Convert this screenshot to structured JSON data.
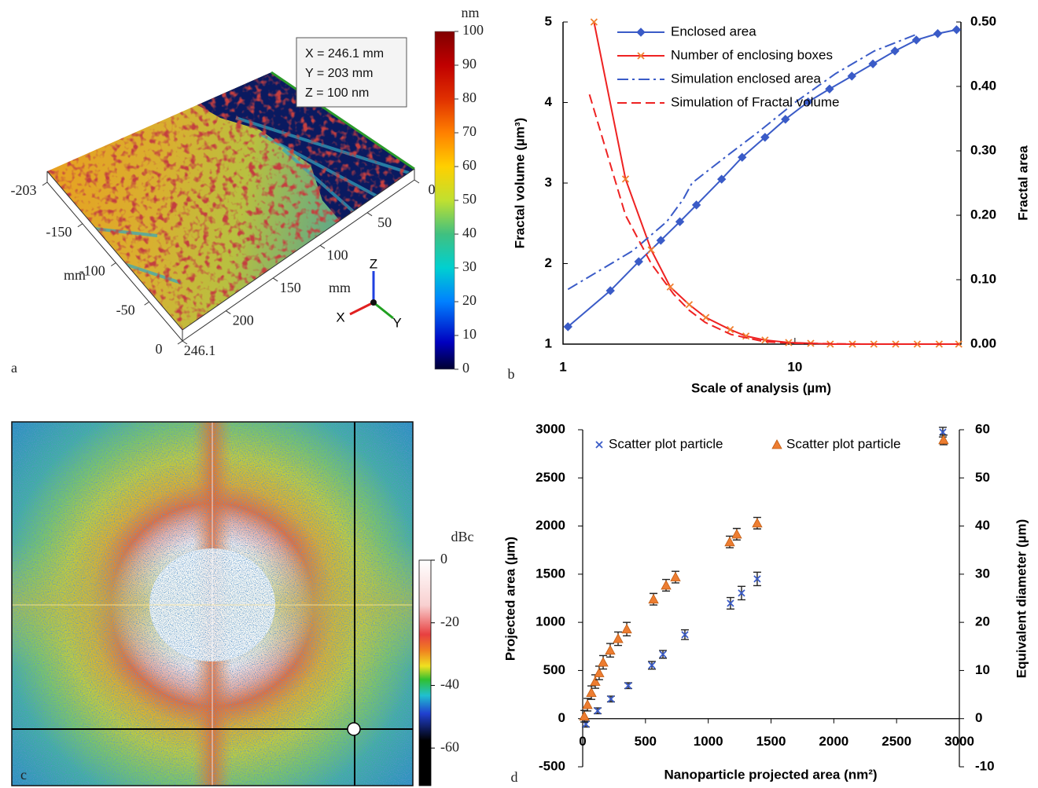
{
  "chart_data": [
    {
      "type": "surface",
      "panel_label": "a",
      "info": [
        "X = 246.1 mm",
        "Y = 203 mm",
        "Z = 100 nm"
      ],
      "color_unit": "nm",
      "clim": [
        0,
        100
      ],
      "cticks": [
        0,
        10,
        20,
        30,
        40,
        50,
        60,
        70,
        80,
        90,
        100
      ],
      "xlabel": "mm",
      "xlim": [
        0,
        246.1
      ],
      "xticks": [
        0,
        50,
        100,
        150,
        200,
        246.1
      ],
      "ylabel": "mm",
      "ylim": [
        -203,
        0
      ],
      "yticks": [
        -203,
        -150,
        -100,
        -50,
        0
      ],
      "triad": [
        "X",
        "Y",
        "Z"
      ]
    },
    {
      "type": "line",
      "panel_label": "b",
      "xlabel": "Scale of analysis (µm)",
      "ylabel": "Fractal volume (µm³)",
      "y2label": "Fractal area",
      "xscale": "log",
      "xlim": [
        1,
        52
      ],
      "xticks": [
        1,
        10
      ],
      "ylim": [
        1,
        5
      ],
      "yticks": [
        1,
        2,
        3,
        4,
        5
      ],
      "y2lim": [
        0,
        0.5
      ],
      "y2ticks": [
        {
          "value": 0,
          "label": "0.00"
        },
        {
          "value": 0.1,
          "label": "0.10"
        },
        {
          "value": 0.2,
          "label": "0.20"
        },
        {
          "value": 0.3,
          "label": "0.30"
        },
        {
          "value": 0.4,
          "label": "0.40"
        },
        {
          "value": 0.5,
          "label": "0.50"
        }
      ],
      "series": [
        {
          "name": "Enclosed area",
          "color": "#3a5bc7",
          "axis": "y2",
          "marker": "diamond",
          "dash": "solid",
          "x": [
            1.05,
            1.6,
            2.12,
            2.64,
            3.19,
            3.76,
            4.83,
            5.92,
            7.43,
            9.1,
            11.4,
            14.1,
            17.6,
            21.7,
            27,
            33.4,
            41.3,
            49.8
          ],
          "values": [
            0.027,
            0.083,
            0.128,
            0.161,
            0.19,
            0.216,
            0.256,
            0.29,
            0.321,
            0.349,
            0.376,
            0.396,
            0.416,
            0.435,
            0.455,
            0.472,
            0.482,
            0.488
          ]
        },
        {
          "name": "Number of enclosing boxes",
          "color": "#ee2222",
          "marker": "x",
          "dash": "solid",
          "x": [
            1.36,
            1.86,
            2.4,
            2.9,
            3.5,
            4.13,
            5.26,
            6.15,
            7.43,
            9.4,
            11.7,
            14.2,
            17.7,
            21.9,
            27.2,
            33.7,
            41.9,
            50.9
          ],
          "values": [
            5,
            3.05,
            2.17,
            1.71,
            1.49,
            1.33,
            1.18,
            1.1,
            1.05,
            1.02,
            1.01,
            1,
            1,
            1,
            1,
            1,
            1,
            1
          ]
        },
        {
          "name": "Simulation enclosed area",
          "color": "#3a5bc7",
          "axis": "y2",
          "dash": "dashdot",
          "x": [
            1.05,
            2,
            2.8,
            3.3,
            3.6,
            5,
            7,
            10,
            15,
            22,
            33
          ],
          "values": [
            0.085,
            0.145,
            0.19,
            0.225,
            0.25,
            0.29,
            0.33,
            0.375,
            0.42,
            0.455,
            0.48
          ]
        },
        {
          "name": "Simulation of Fractal volume",
          "color": "#ee2222",
          "dash": "dash",
          "x": [
            1.3,
            1.5,
            1.86,
            2.4,
            3,
            3.5,
            4.1,
            5.3,
            7.4,
            10,
            20,
            51
          ],
          "values": [
            4.1,
            3.5,
            2.6,
            2,
            1.62,
            1.42,
            1.27,
            1.12,
            1.03,
            1.01,
            1,
            1
          ]
        }
      ]
    },
    {
      "type": "heatmap",
      "panel_label": "c",
      "color_unit": "dBc",
      "clim": [
        -72,
        0
      ],
      "cticks": [
        0,
        -20,
        -40,
        -60
      ]
    },
    {
      "type": "scatter",
      "panel_label": "d",
      "xlabel": "Nanoparticle projected area (nm²)",
      "ylabel": "Projected area (µm)",
      "y2label": "Equivalent diameter (µm)",
      "xlim": [
        0,
        3000
      ],
      "xticks": [
        0,
        500,
        1000,
        1500,
        2000,
        2500,
        3000
      ],
      "ylim": [
        -500,
        3000
      ],
      "yticks": [
        -500,
        0,
        500,
        1000,
        1500,
        2000,
        2500,
        3000
      ],
      "y2lim": [
        -10,
        60
      ],
      "y2ticks": [
        -10,
        0,
        10,
        20,
        30,
        40,
        50,
        60
      ],
      "series": [
        {
          "name": "Scatter plot particle",
          "color": "#3a5bc7",
          "marker": "x",
          "x": [
            25,
            119,
            225,
            363,
            551,
            639,
            814,
            1177,
            1265,
            1390,
            2868
          ],
          "values": [
            -57,
            81,
            204,
            342,
            554,
            668,
            872,
            1198,
            1304,
            1451,
            2975
          ],
          "errors": [
            30,
            30,
            30,
            30,
            40,
            40,
            50,
            60,
            70,
            70,
            50
          ]
        },
        {
          "name": "Scatter plot particle",
          "color": "#ed7d31",
          "axis": "y2",
          "marker": "triangle",
          "x": [
            13,
            38,
            69,
            100,
            131,
            163,
            219,
            282,
            351,
            564,
            664,
            739,
            1171,
            1227,
            1390,
            2874
          ],
          "values": [
            0.5,
            2.9,
            5.4,
            7.7,
            9.5,
            11.7,
            14.2,
            16.6,
            18.6,
            24.8,
            27.7,
            29.4,
            36.7,
            38.3,
            40.6,
            57.9
          ],
          "errors": [
            1.2,
            1.3,
            1.4,
            1.4,
            1.4,
            1.4,
            1.4,
            1.4,
            1.4,
            1.2,
            1.2,
            1.2,
            1.2,
            1.2,
            1.2,
            1
          ]
        }
      ]
    }
  ]
}
